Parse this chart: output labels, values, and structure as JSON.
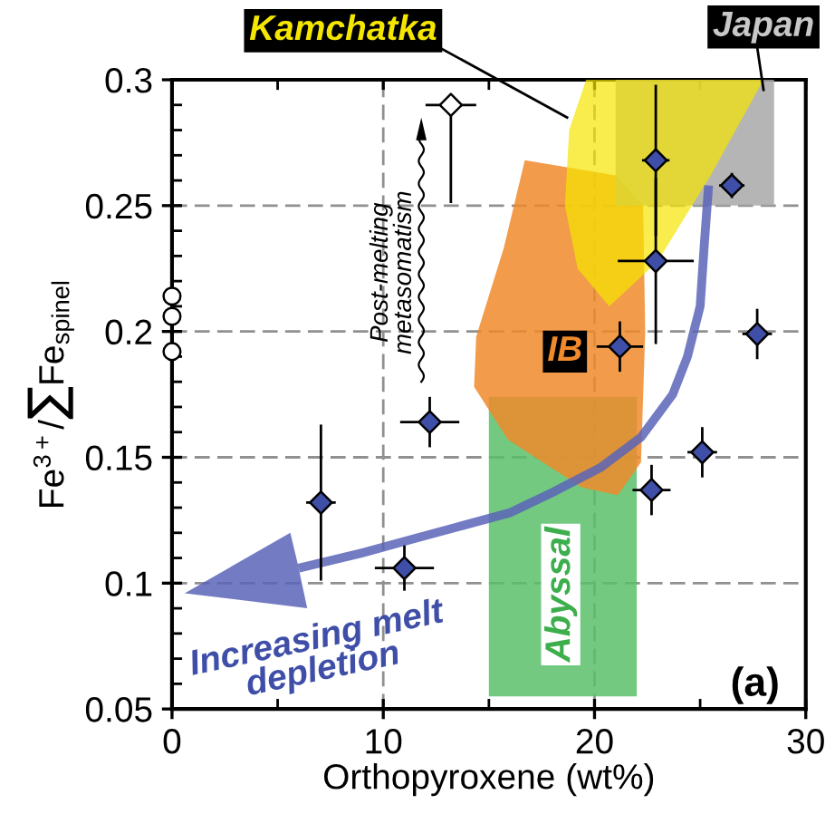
{
  "chart_data": {
    "type": "scatter",
    "xlabel": "Orthopyroxene (wt%)",
    "ylabel": "Fe$^{3+}$/∑Fe$_{spinel}$",
    "xlim": [
      0,
      30
    ],
    "xticks": [
      0,
      10,
      20,
      30
    ],
    "ylim": [
      0.05,
      0.3
    ],
    "yticks": [
      0.05,
      0.1,
      0.15,
      0.2,
      0.25,
      0.3
    ],
    "grid": true,
    "line_style": "dashed",
    "series": [
      {
        "color": "#3f4fa8",
        "marker": "diamond",
        "x": [
          7.05,
          11.0,
          12.2,
          21.2,
          22.7,
          22.9,
          22.9,
          25.1,
          26.5,
          27.7
        ],
        "values": [
          0.132,
          0.106,
          0.164,
          0.194,
          0.137,
          0.268,
          0.228,
          0.152,
          0.258,
          0.199
        ],
        "errors": [
          0.031,
          0.009,
          0.01,
          0.01,
          0.01,
          0.03,
          0.033,
          0.01,
          0.005,
          0.01
        ],
        "xerrors": [
          0.7,
          1.4,
          1.4,
          1.1,
          0.9,
          0.65,
          1.8,
          0.7,
          0.6,
          0.7
        ]
      },
      {
        "color": "#ffffff",
        "marker": "circle",
        "x": [
          0,
          0,
          0
        ],
        "values": [
          0.214,
          0.206,
          0.192
        ]
      },
      {
        "color": "#ffffff",
        "marker": "diamond",
        "x": [
          13.2
        ],
        "values": [
          0.29
        ],
        "errors": [
          [
            0.251,
            0.29
          ]
        ],
        "xerrors": [
          1.2
        ]
      }
    ],
    "annotations": [
      "Kamchatka",
      "Japan",
      "IB",
      "Abyssal",
      "Post-melting\nmetasomatism",
      "Increasing melt\ndepletion",
      "(a)"
    ]
  }
}
